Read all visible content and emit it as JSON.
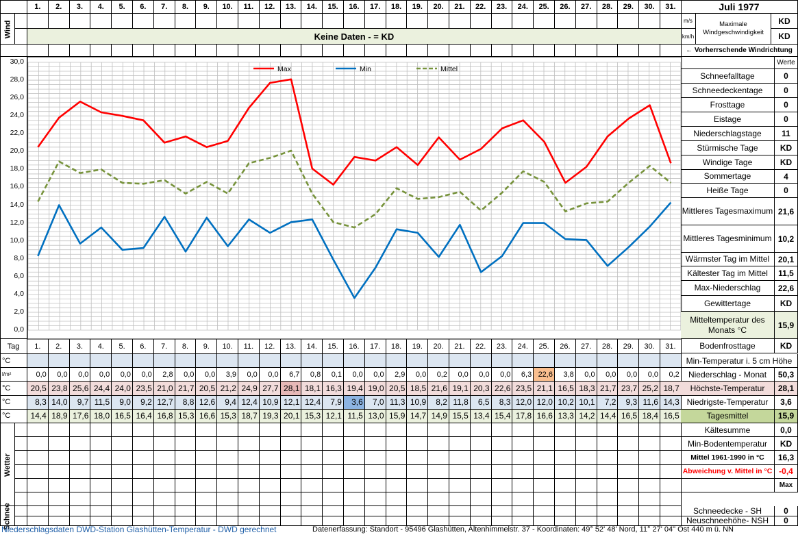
{
  "header": {
    "title": "Juli 1977",
    "wind_label": "Wind",
    "no_data_text": "Keine Daten -  = KD",
    "unit_ms": "m/s",
    "unit_kmh": "km/h",
    "max_wind_label": "Maximale Windgeschwindigkeit",
    "max_wind_ms": "KD",
    "max_wind_kmh": "KD",
    "wind_direction_label": "← Vorherrschende Windrichtung",
    "werte_label": "Werte"
  },
  "days": [
    "1.",
    "2.",
    "3.",
    "4.",
    "5.",
    "6.",
    "7.",
    "8.",
    "9.",
    "10.",
    "11.",
    "12.",
    "13.",
    "14.",
    "15.",
    "16.",
    "17.",
    "18.",
    "19.",
    "20.",
    "21.",
    "22.",
    "23.",
    "24.",
    "25.",
    "26.",
    "27.",
    "28.",
    "29.",
    "30.",
    "31."
  ],
  "chart_data": {
    "type": "line",
    "x": [
      1,
      2,
      3,
      4,
      5,
      6,
      7,
      8,
      9,
      10,
      11,
      12,
      13,
      14,
      15,
      16,
      17,
      18,
      19,
      20,
      21,
      22,
      23,
      24,
      25,
      26,
      27,
      28,
      29,
      30,
      31
    ],
    "ylim": [
      0,
      30
    ],
    "yticks": [
      "0,0",
      "2,0",
      "4,0",
      "6,0",
      "8,0",
      "10,0",
      "12,0",
      "14,0",
      "16,0",
      "18,0",
      "20,0",
      "22,0",
      "24,0",
      "26,0",
      "28,0",
      "30,0"
    ],
    "grid": true,
    "legend_position": "top",
    "series": [
      {
        "name": "Max",
        "color": "#ff0000",
        "dash": false,
        "values": [
          20.5,
          23.8,
          25.6,
          24.4,
          24.0,
          23.5,
          21.0,
          21.7,
          20.5,
          21.2,
          24.9,
          27.7,
          28.1,
          18.1,
          16.3,
          19.4,
          19.0,
          20.5,
          18.5,
          21.6,
          19.1,
          20.3,
          22.6,
          23.5,
          21.1,
          16.5,
          18.3,
          21.7,
          23.7,
          25.2,
          18.7
        ]
      },
      {
        "name": "Min",
        "color": "#0070c0",
        "dash": false,
        "values": [
          8.3,
          14.0,
          9.7,
          11.5,
          9.0,
          9.2,
          12.7,
          8.8,
          12.6,
          9.4,
          12.4,
          10.9,
          12.1,
          12.4,
          7.9,
          3.6,
          7.0,
          11.3,
          10.9,
          8.2,
          11.8,
          6.5,
          8.3,
          12.0,
          12.0,
          10.2,
          10.1,
          7.2,
          9.3,
          11.6,
          14.3
        ]
      },
      {
        "name": "Mittel",
        "color": "#77933c",
        "dash": true,
        "values": [
          14.4,
          18.9,
          17.6,
          18.0,
          16.5,
          16.4,
          16.8,
          15.3,
          16.6,
          15.3,
          18.7,
          19.3,
          20.1,
          15.3,
          12.1,
          11.5,
          13.0,
          15.9,
          14.7,
          14.9,
          15.5,
          13.4,
          15.4,
          17.8,
          16.6,
          13.3,
          14.2,
          14.4,
          16.5,
          18.4,
          16.5
        ]
      }
    ]
  },
  "right_panel": [
    {
      "label": "Schneefalltage",
      "value": "0"
    },
    {
      "label": "Schneedeckentage",
      "value": "0"
    },
    {
      "label": "Frosttage",
      "value": "0"
    },
    {
      "label": "Eistage",
      "value": "0"
    },
    {
      "label": "Niederschlagstage",
      "value": "11"
    },
    {
      "label": "Stürmische Tage",
      "value": "KD"
    },
    {
      "label": "Windige Tage",
      "value": "KD"
    },
    {
      "label": "Sommertage",
      "value": "4"
    },
    {
      "label": "Heiße Tage",
      "value": "0"
    },
    {
      "label": "Mittleres Tagesmaximum",
      "value": "21,6"
    },
    {
      "label": "Mittleres Tagesminimum",
      "value": "10,2"
    },
    {
      "label": "Wärmster Tag im Mittel",
      "value": "20,1"
    },
    {
      "label": "Kältester Tag im Mittel",
      "value": "11,5"
    },
    {
      "label": "Max-Niederschlag",
      "value": "22,6"
    },
    {
      "label": "Gewittertage",
      "value": "KD"
    },
    {
      "label": "Mitteltemperatur des Monats °C",
      "value": "15,9"
    },
    {
      "label": "Bodenfrosttage",
      "value": "KD"
    }
  ],
  "table": {
    "tag_label": "Tag",
    "unit_c": "°C",
    "unit_lm2": "l/m²",
    "min5cm_label": "Min-Temperatur i. 5 cm Höhe",
    "precip": [
      "0,0",
      "0,0",
      "0,0",
      "0,0",
      "0,0",
      "0,0",
      "2,8",
      "0,0",
      "0,0",
      "3,9",
      "0,0",
      "0,0",
      "6,7",
      "0,8",
      "0,1",
      "0,0",
      "0,0",
      "2,9",
      "0,0",
      "0,2",
      "0,0",
      "0,0",
      "0,0",
      "6,3",
      "22,6",
      "3,8",
      "0,0",
      "0,0",
      "0,0",
      "0,0",
      "0,2"
    ],
    "max": [
      "20,5",
      "23,8",
      "25,6",
      "24,4",
      "24,0",
      "23,5",
      "21,0",
      "21,7",
      "20,5",
      "21,2",
      "24,9",
      "27,7",
      "28,1",
      "18,1",
      "16,3",
      "19,4",
      "19,0",
      "20,5",
      "18,5",
      "21,6",
      "19,1",
      "20,3",
      "22,6",
      "23,5",
      "21,1",
      "16,5",
      "18,3",
      "21,7",
      "23,7",
      "25,2",
      "18,7"
    ],
    "min": [
      "8,3",
      "14,0",
      "9,7",
      "11,5",
      "9,0",
      "9,2",
      "12,7",
      "8,8",
      "12,6",
      "9,4",
      "12,4",
      "10,9",
      "12,1",
      "12,4",
      "7,9",
      "3,6",
      "7,0",
      "11,3",
      "10,9",
      "8,2",
      "11,8",
      "6,5",
      "8,3",
      "12,0",
      "12,0",
      "10,2",
      "10,1",
      "7,2",
      "9,3",
      "11,6",
      "14,3"
    ],
    "mean": [
      "14,4",
      "18,9",
      "17,6",
      "18,0",
      "16,5",
      "16,4",
      "16,8",
      "15,3",
      "16,6",
      "15,3",
      "18,7",
      "19,3",
      "20,1",
      "15,3",
      "12,1",
      "11,5",
      "13,0",
      "15,9",
      "14,7",
      "14,9",
      "15,5",
      "13,4",
      "15,4",
      "17,8",
      "16,6",
      "13,3",
      "14,2",
      "14,4",
      "16,5",
      "18,4",
      "16,5"
    ],
    "stats": [
      {
        "label": "Niederschlag - Monat",
        "value": "50,3"
      },
      {
        "label": "Höchste-Temperatur",
        "value": "28,1"
      },
      {
        "label": "Niedrigste-Temperatur",
        "value": "3,6"
      },
      {
        "label": "Tagesmittel",
        "value": "15,9"
      },
      {
        "label": "Kältesumme",
        "value": "0,0"
      },
      {
        "label": "Min-Bodentemperatur",
        "value": "KD"
      },
      {
        "label": "Mittel 1961-1990 in °C",
        "value": "16,3"
      },
      {
        "label": "Abweichung v. Mittel in °C",
        "value": "-0,4"
      }
    ],
    "max_label": "Max",
    "wetter_label": "Wetter",
    "schnee_label": "Schnee",
    "schneedecke_label": "Schneedecke -  SH",
    "schneedecke_value": "0",
    "neuschnee_label": "Neuschneehöhe- NSH",
    "neuschnee_value": "0"
  },
  "footer": {
    "left": "Niederschlagsdaten DWD-Station Glashütten-Temperatur -  DWD gerechnet",
    "right": "Datenerfassung: Standort -  95496  Glashütten, Altenhimmelstr. 37 - Koordinaten:  49° 52' 48' Nord,   11° 27' 04\" Ost   440 m ü. NN"
  },
  "colors": {
    "green": "#ebf1de",
    "blue": "#dce6f1",
    "pink": "#f2dcdb",
    "orange": "#fabf8f",
    "minblue": "#8db4e2",
    "red_text": "#ff0000"
  }
}
